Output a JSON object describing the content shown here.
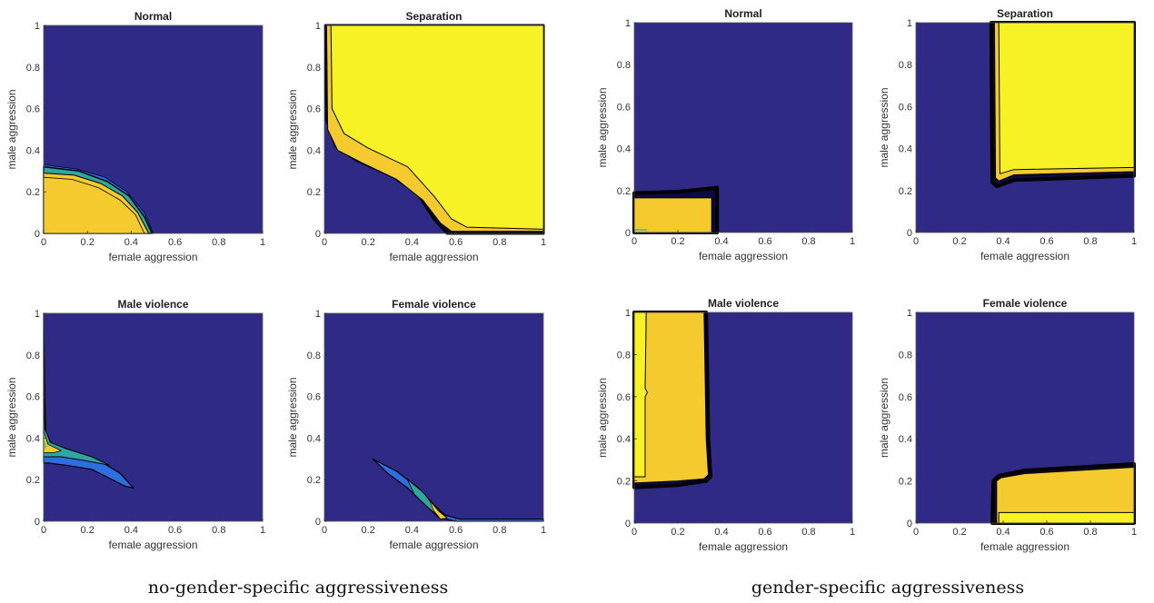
{
  "colors": {
    "background_region": "#2e2a86",
    "level_high": "#f7f225",
    "level_mid": "#f5ca2e",
    "level_low": "#2d6fe0",
    "level_teal": "#2fa7a0",
    "level_green": "#7cc35e",
    "contour_edge": "#000000"
  },
  "captions": {
    "left": "no-gender-specific aggressiveness",
    "right": "gender-specific aggressiveness"
  },
  "chart_data": [
    {
      "type": "heatmap",
      "group": "no-gender-specific aggressiveness",
      "title": "Normal",
      "xlabel": "female aggression",
      "ylabel": "male aggression",
      "xlim": [
        0,
        1
      ],
      "ylim": [
        0,
        1
      ],
      "xticks": [
        "0",
        "0.2",
        "0.4",
        "0.6",
        "0.8",
        "1"
      ],
      "yticks": [
        "0",
        "0.2",
        "0.4",
        "0.6",
        "0.8",
        "1"
      ],
      "regions": [
        {
          "level": "mid",
          "description": "quarter disc",
          "boundary": [
            [
              0,
              0.27
            ],
            [
              0.2,
              0.24
            ],
            [
              0.35,
              0.17
            ],
            [
              0.46,
              0.06
            ],
            [
              0.49,
              0
            ]
          ]
        }
      ]
    },
    {
      "type": "heatmap",
      "group": "no-gender-specific aggressiveness",
      "title": "Separation",
      "xlabel": "female aggression",
      "ylabel": "male aggression",
      "xlim": [
        0,
        1
      ],
      "ylim": [
        0,
        1
      ],
      "xticks": [
        "0",
        "0.2",
        "0.4",
        "0.6",
        "0.8",
        "1"
      ],
      "yticks": [
        "0",
        "0.2",
        "0.4",
        "0.6",
        "0.8",
        "1"
      ],
      "regions": [
        {
          "level": "high",
          "description": "upper right region",
          "boundary": [
            [
              0.02,
              1
            ],
            [
              0.03,
              0.5
            ],
            [
              0.15,
              0.38
            ],
            [
              0.4,
              0.25
            ],
            [
              0.6,
              0.04
            ],
            [
              1,
              0.02
            ]
          ]
        }
      ]
    },
    {
      "type": "heatmap",
      "group": "no-gender-specific aggressiveness",
      "title": "Male violence",
      "xlabel": "female aggression",
      "ylabel": "male aggression",
      "xlim": [
        0,
        1
      ],
      "ylim": [
        0,
        1
      ],
      "xticks": [
        "0",
        "0.2",
        "0.4",
        "0.6",
        "0.8",
        "1"
      ],
      "yticks": [
        "0",
        "0.2",
        "0.4",
        "0.6",
        "0.8",
        "1"
      ],
      "regions": [
        {
          "level": "mixed",
          "description": "thin crescent band",
          "boundary": [
            [
              0,
              1
            ],
            [
              0.02,
              0.4
            ],
            [
              0.2,
              0.3
            ],
            [
              0.41,
              0.16
            ]
          ]
        }
      ]
    },
    {
      "type": "heatmap",
      "group": "no-gender-specific aggressiveness",
      "title": "Female violence",
      "xlabel": "female aggression",
      "ylabel": "male aggression",
      "xlim": [
        0,
        1
      ],
      "ylim": [
        0,
        1
      ],
      "xticks": [
        "0",
        "0.2",
        "0.4",
        "0.6",
        "0.8",
        "1"
      ],
      "yticks": [
        "0",
        "0.2",
        "0.4",
        "0.6",
        "0.8",
        "1"
      ],
      "regions": [
        {
          "level": "mixed",
          "description": "thin crescent band",
          "boundary": [
            [
              0.22,
              0.3
            ],
            [
              0.4,
              0.17
            ],
            [
              0.55,
              0.02
            ],
            [
              1,
              0.005
            ]
          ]
        }
      ]
    },
    {
      "type": "heatmap",
      "group": "gender-specific aggressiveness",
      "title": "Normal",
      "xlabel": "female aggression",
      "ylabel": "male aggression",
      "xlim": [
        0,
        1
      ],
      "ylim": [
        0,
        1
      ],
      "xticks": [
        "0",
        "0.2",
        "0.4",
        "0.6",
        "0.8",
        "1"
      ],
      "yticks": [
        "0",
        "0.2",
        "0.4",
        "0.6",
        "0.8",
        "1"
      ],
      "regions": [
        {
          "level": "mid",
          "description": "rectangle",
          "x": [
            0,
            0.36
          ],
          "y": [
            0,
            0.18
          ]
        }
      ]
    },
    {
      "type": "heatmap",
      "group": "gender-specific aggressiveness",
      "title": "Separation",
      "xlabel": "female aggression",
      "ylabel": "male aggression",
      "xlim": [
        0,
        1
      ],
      "ylim": [
        0,
        1
      ],
      "xticks": [
        "0",
        "0.2",
        "0.4",
        "0.6",
        "0.8",
        "1"
      ],
      "yticks": [
        "0",
        "0.2",
        "0.4",
        "0.6",
        "0.8",
        "1"
      ],
      "regions": [
        {
          "level": "high",
          "description": "upper right rectangle",
          "x": [
            0.37,
            1
          ],
          "y": [
            0.25,
            1
          ]
        }
      ]
    },
    {
      "type": "heatmap",
      "group": "gender-specific aggressiveness",
      "title": "Male violence",
      "xlabel": "female aggression",
      "ylabel": "male aggression",
      "xlim": [
        0,
        1
      ],
      "ylim": [
        0,
        1
      ],
      "xticks": [
        "0",
        "0.2",
        "0.4",
        "0.6",
        "0.8",
        "1"
      ],
      "yticks": [
        "0",
        "0.2",
        "0.4",
        "0.6",
        "0.8",
        "1"
      ],
      "regions": [
        {
          "level": "mid",
          "description": "tall rectangle",
          "x": [
            0,
            0.35
          ],
          "y": [
            0.18,
            1
          ]
        },
        {
          "level": "high",
          "description": "left strip",
          "x": [
            0,
            0.05
          ],
          "y": [
            0.22,
            1
          ]
        }
      ]
    },
    {
      "type": "heatmap",
      "group": "gender-specific aggressiveness",
      "title": "Female violence",
      "xlabel": "female aggression",
      "ylabel": "male aggression",
      "xlim": [
        0,
        1
      ],
      "ylim": [
        0,
        1
      ],
      "xticks": [
        "0",
        "0.2",
        "0.4",
        "0.6",
        "0.8",
        "1"
      ],
      "yticks": [
        "0",
        "0.2",
        "0.4",
        "0.6",
        "0.8",
        "1"
      ],
      "regions": [
        {
          "level": "mid",
          "description": "wide rectangle",
          "x": [
            0.36,
            1
          ],
          "y": [
            0,
            0.26
          ]
        },
        {
          "level": "high",
          "description": "bottom strip",
          "x": [
            0.38,
            1
          ],
          "y": [
            0,
            0.05
          ]
        }
      ]
    }
  ]
}
